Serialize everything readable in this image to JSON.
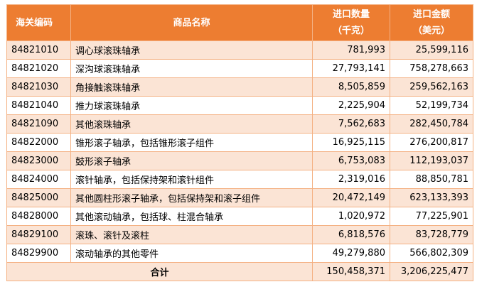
{
  "header": {
    "code": "海关编码",
    "name": "商品名称",
    "qty_line1": "进口数量",
    "qty_line2": "（千克）",
    "amt_line1": "进口金额",
    "amt_line2": "（美元）"
  },
  "rows": [
    {
      "code": "84821010",
      "name": "调心球滚珠轴承",
      "qty": "781,993",
      "amount": "25,599,116"
    },
    {
      "code": "84821020",
      "name": "深沟球滚珠轴承",
      "qty": "27,793,141",
      "amount": "758,278,663"
    },
    {
      "code": "84821030",
      "name": "角接触滚珠轴承",
      "qty": "8,505,859",
      "amount": "259,562,163"
    },
    {
      "code": "84821040",
      "name": "推力球滚珠轴承",
      "qty": "2,225,904",
      "amount": "52,199,734"
    },
    {
      "code": "84821090",
      "name": "其他滚珠轴承",
      "qty": "7,562,683",
      "amount": "282,450,784"
    },
    {
      "code": "84822000",
      "name": "锥形滚子轴承，包括锥形滚子组件",
      "qty": "16,925,115",
      "amount": "276,200,817"
    },
    {
      "code": "84823000",
      "name": "鼓形滚子轴承",
      "qty": "6,753,083",
      "amount": "112,193,037"
    },
    {
      "code": "84824000",
      "name": "滚针轴承，包括保持架和滚针组件",
      "qty": "2,319,016",
      "amount": "88,850,781"
    },
    {
      "code": "84825000",
      "name": "其他圆柱形滚子轴承，包括保持架和滚子组件",
      "qty": "20,472,149",
      "amount": "623,133,393"
    },
    {
      "code": "84828000",
      "name": "其他滚动轴承，包括球、柱混合轴承",
      "qty": "1,020,972",
      "amount": "77,225,901"
    },
    {
      "code": "84829100",
      "name": "滚珠、滚针及滚柱",
      "qty": "6,818,576",
      "amount": "83,728,779"
    },
    {
      "code": "84829900",
      "name": "滚动轴承的其他零件",
      "qty": "49,279,880",
      "amount": "566,802,309"
    }
  ],
  "total": {
    "label": "合计",
    "qty": "150,458,371",
    "amount": "3,206,225,477"
  },
  "colors": {
    "header_bg": "#ed7d31",
    "band_bg": "#fbe4d5",
    "border": "#f4b183"
  }
}
